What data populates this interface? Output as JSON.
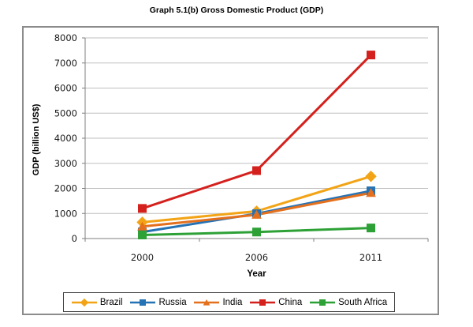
{
  "title": "Graph 5.1(b) Gross Domestic Product (GDP)",
  "chart_data": {
    "type": "line",
    "title": "Graph 5.1(b) Gross Domestic Product (GDP)",
    "categories": [
      "2000",
      "2006",
      "2011"
    ],
    "series": [
      {
        "name": "Brazil",
        "marker": "diamond",
        "color": "#F2A416",
        "values": [
          650,
          1090,
          2480
        ]
      },
      {
        "name": "Russia",
        "marker": "square",
        "color": "#2572B4",
        "values": [
          260,
          990,
          1900
        ]
      },
      {
        "name": "India",
        "marker": "triangle",
        "color": "#E4701E",
        "values": [
          480,
          950,
          1820
        ]
      },
      {
        "name": "China",
        "marker": "square",
        "color": "#D4211D",
        "values": [
          1200,
          2710,
          7320
        ]
      },
      {
        "name": "South Africa",
        "marker": "square",
        "color": "#2DA136",
        "values": [
          140,
          260,
          420
        ]
      }
    ],
    "xlabel": "Year",
    "ylabel": "GDP (billion US$)",
    "ylim": [
      0,
      8000
    ],
    "y_ticks": [
      0,
      1000,
      2000,
      3000,
      4000,
      5000,
      6000,
      7000,
      8000
    ],
    "grid": "horizontal",
    "legend_position": "bottom",
    "colors": {
      "gridline": "#BFBFBF",
      "axis": "#7F7F7F",
      "outer_border": "#8C8C8C",
      "legend_border": "#404040"
    }
  }
}
